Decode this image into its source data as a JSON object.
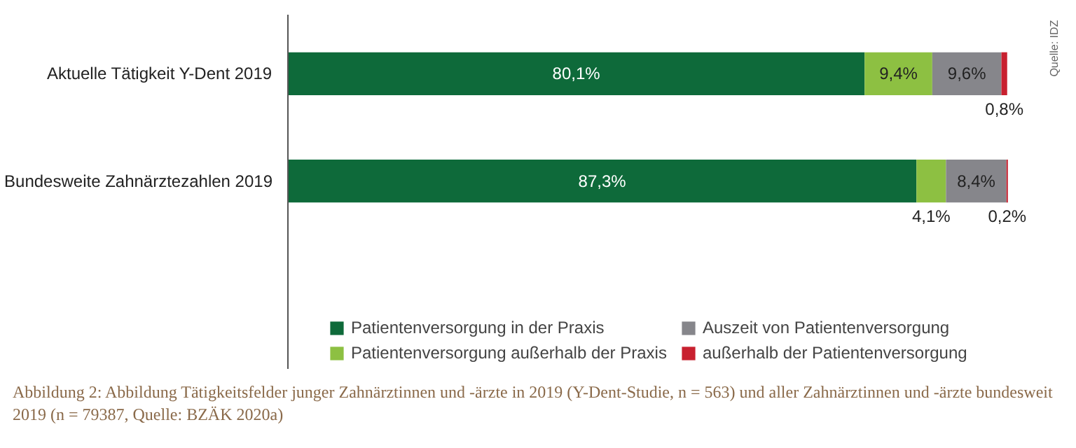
{
  "chart_data": {
    "type": "bar",
    "orientation": "horizontal",
    "stacked": true,
    "categories": [
      "Aktuelle Tätigkeit Y-Dent 2019",
      "Bundesweite Zahnärztezahlen 2019"
    ],
    "series": [
      {
        "name": "Patientenversorgung in der Praxis",
        "color": "#0e6a3a",
        "values": [
          80.1,
          87.3
        ],
        "value_labels": [
          "80,1%",
          "87,3%"
        ]
      },
      {
        "name": "Patientenversorgung außerhalb der Praxis",
        "color": "#8dc042",
        "values": [
          9.4,
          4.1
        ],
        "value_labels": [
          "9,4%",
          "4,1%"
        ]
      },
      {
        "name": "Auszeit von Patientenversorgung",
        "color": "#86868b",
        "values": [
          9.6,
          8.4
        ],
        "value_labels": [
          "9,6%",
          "8,4%"
        ]
      },
      {
        "name": "außerhalb der Patientenversorgung",
        "color": "#c8202f",
        "values": [
          0.8,
          0.2
        ],
        "value_labels": [
          "0,8%",
          "0,2%"
        ]
      }
    ],
    "legend": "bottom",
    "grid": false,
    "tick_labels": "y",
    "annotations": [
      "Quelle: IDZ",
      "Abbildung 2: Abbildung  Tätigkeitsfelder junger Zahnärztinnen und -ärzte in 2019 (Y-Dent-Studie, n = 563) und aller Zahnärztinnen und -ärzte bundesweit 2019 (n = 79387, Quelle: BZÄK 2020a)"
    ]
  }
}
